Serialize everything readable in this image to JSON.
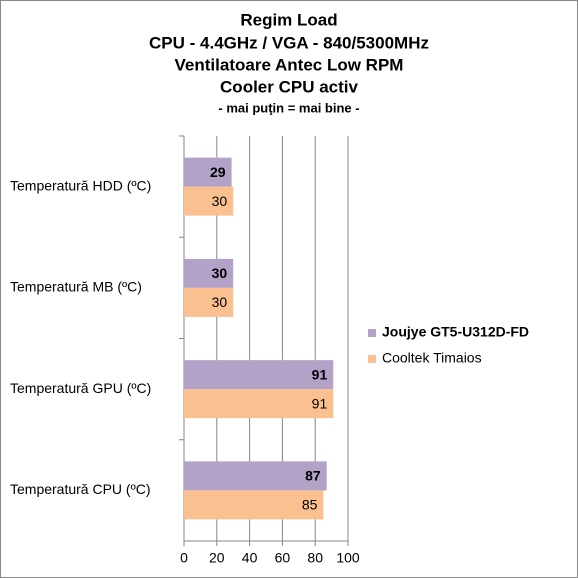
{
  "chart_data": {
    "type": "hbar",
    "title": [
      "Regim Load",
      "CPU - 4.4GHz / VGA - 840/5300MHz",
      "Ventilatoare Antec Low RPM",
      "Cooler CPU activ"
    ],
    "subtitle": "- mai puţin = mai bine -",
    "categories": [
      "Temperatură  HDD (ºC)",
      "Temperatură  MB (ºC)",
      "Temperatură  GPU (ºC)",
      "Temperatură  CPU (ºC)"
    ],
    "series": [
      {
        "name": "Joujye GT5-U312D-FD",
        "color": "#b3a2c7",
        "values": [
          29,
          30,
          91,
          87
        ]
      },
      {
        "name": "Cooltek Timaios",
        "color": "#fac090",
        "values": [
          30,
          30,
          91,
          85
        ]
      }
    ],
    "xlim": [
      0,
      100
    ],
    "xticks": [
      0,
      20,
      40,
      60,
      80,
      100
    ],
    "grid": true,
    "legend": "right"
  }
}
